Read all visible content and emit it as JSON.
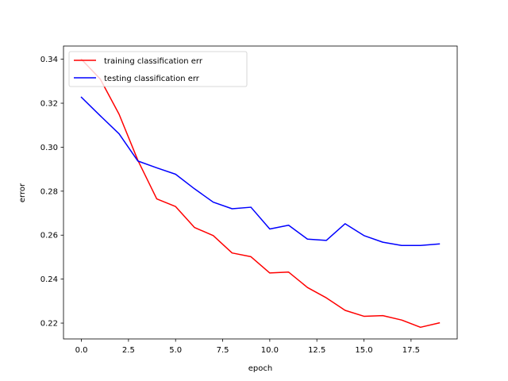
{
  "chart_data": {
    "type": "line",
    "title": "",
    "xlabel": "epoch",
    "ylabel": "error",
    "xlim": [
      -0.95,
      19.95
    ],
    "ylim": [
      0.2128,
      0.346
    ],
    "xticks": [
      0.0,
      2.5,
      5.0,
      7.5,
      10.0,
      12.5,
      15.0,
      17.5
    ],
    "xtick_labels": [
      "0.0",
      "2.5",
      "5.0",
      "7.5",
      "10.0",
      "12.5",
      "15.0",
      "17.5"
    ],
    "yticks": [
      0.22,
      0.24,
      0.26,
      0.28,
      0.3,
      0.32,
      0.34
    ],
    "ytick_labels": [
      "0.22",
      "0.24",
      "0.26",
      "0.28",
      "0.30",
      "0.32",
      "0.34"
    ],
    "grid": false,
    "legend_position": "upper-left",
    "x": [
      0,
      1,
      2,
      3,
      4,
      5,
      6,
      7,
      8,
      9,
      10,
      11,
      12,
      13,
      14,
      15,
      16,
      17,
      18,
      19
    ],
    "series": [
      {
        "name": "training classification err",
        "color": "#ff0000",
        "values": [
          0.34,
          0.331,
          0.315,
          0.294,
          0.2765,
          0.273,
          0.2635,
          0.2598,
          0.2519,
          0.2502,
          0.2428,
          0.2432,
          0.2362,
          0.2315,
          0.2258,
          0.2231,
          0.2234,
          0.2214,
          0.2181,
          0.2201
        ]
      },
      {
        "name": "testing classification err",
        "color": "#0000ff",
        "values": [
          0.3227,
          0.3143,
          0.3061,
          0.2937,
          0.2906,
          0.2877,
          0.2811,
          0.275,
          0.272,
          0.2727,
          0.2628,
          0.2645,
          0.2582,
          0.2576,
          0.2652,
          0.2598,
          0.2568,
          0.2553,
          0.2553,
          0.256
        ]
      }
    ]
  }
}
